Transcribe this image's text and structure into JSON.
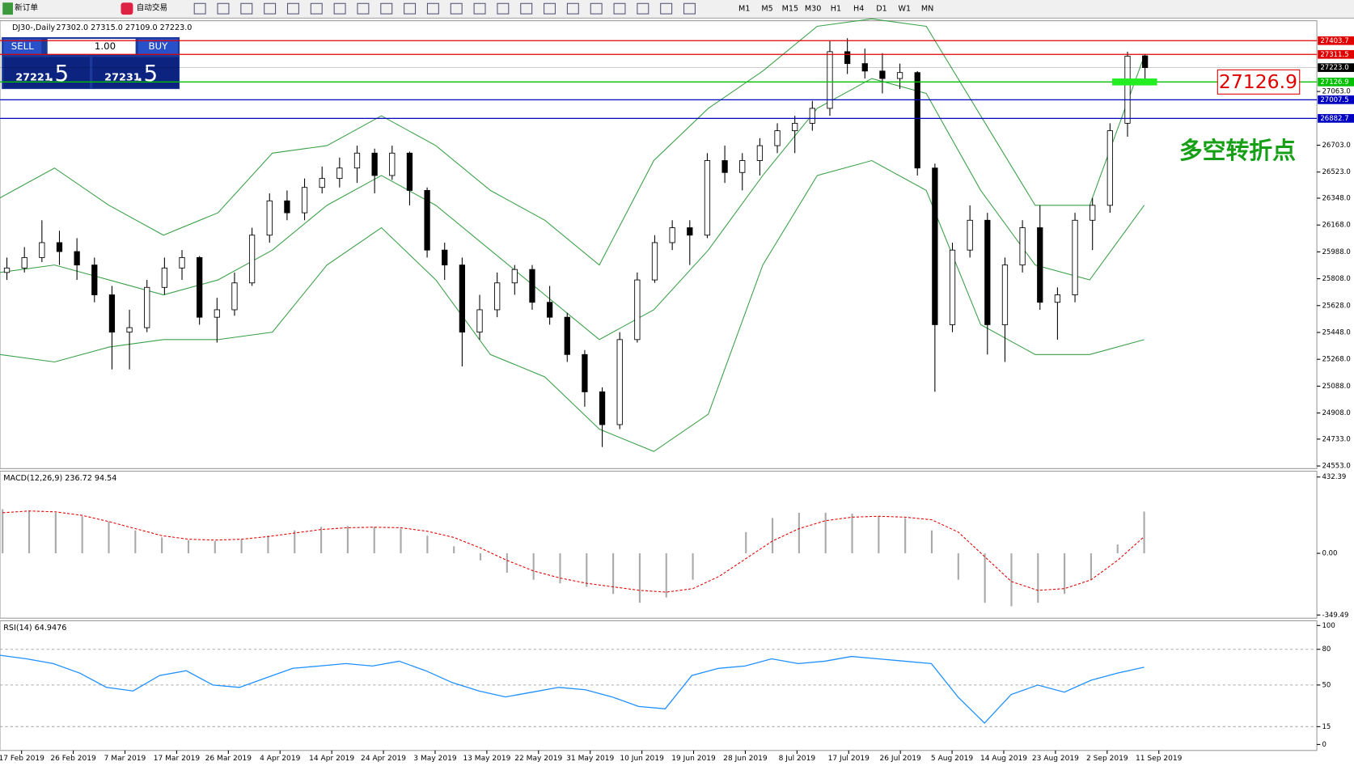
{
  "toolbar": {
    "new_order": "新订单",
    "auto_trading": "自动交易",
    "timeframes": [
      "M1",
      "M5",
      "M15",
      "M30",
      "H1",
      "H4",
      "D1",
      "W1",
      "MN"
    ]
  },
  "trade_panel": {
    "sell": "SELL",
    "buy": "BUY",
    "volume": "1.00",
    "sell_price": "27221",
    "sell_pip": ".5",
    "buy_price": "27231",
    "buy_pip": ".5"
  },
  "time_axis": {
    "labels": [
      "17 Feb 2019",
      "26 Feb 2019",
      "7 Mar 2019",
      "17 Mar 2019",
      "26 Mar 2019",
      "4 Apr 2019",
      "14 Apr 2019",
      "24 Apr 2019",
      "3 May 2019",
      "13 May 2019",
      "22 May 2019",
      "31 May 2019",
      "10 Jun 2019",
      "19 Jun 2019",
      "28 Jun 2019",
      "8 Jul 2019",
      "17 Jul 2019",
      "26 Jul 2019",
      "5 Aug 2019",
      "14 Aug 2019",
      "23 Aug 2019",
      "2 Sep 2019",
      "11 Sep 2019"
    ]
  },
  "chart_data": [
    {
      "type": "candlestick",
      "title": "DJ30-,Daily",
      "ohlc_label": "27302.0 27315.0 27109.0 27223.0",
      "candles": [
        [
          25850,
          25950,
          25800,
          25880
        ],
        [
          25880,
          26020,
          25850,
          25950
        ],
        [
          25950,
          26200,
          25920,
          26050
        ],
        [
          26050,
          26130,
          25900,
          25990
        ],
        [
          25990,
          26080,
          25800,
          25900
        ],
        [
          25900,
          25950,
          25650,
          25700
        ],
        [
          25700,
          25760,
          25200,
          25450
        ],
        [
          25450,
          25600,
          25200,
          25480
        ],
        [
          25480,
          25800,
          25450,
          25750
        ],
        [
          25750,
          25950,
          25700,
          25880
        ],
        [
          25880,
          26000,
          25800,
          25950
        ],
        [
          25950,
          25960,
          25500,
          25550
        ],
        [
          25550,
          25680,
          25380,
          25600
        ],
        [
          25600,
          25850,
          25560,
          25780
        ],
        [
          25780,
          26150,
          25760,
          26100
        ],
        [
          26100,
          26380,
          26050,
          26330
        ],
        [
          26330,
          26400,
          26200,
          26250
        ],
        [
          26250,
          26480,
          26200,
          26420
        ],
        [
          26420,
          26560,
          26380,
          26480
        ],
        [
          26480,
          26620,
          26420,
          26550
        ],
        [
          26550,
          26700,
          26450,
          26650
        ],
        [
          26650,
          26680,
          26380,
          26500
        ],
        [
          26500,
          26700,
          26470,
          26650
        ],
        [
          26650,
          26660,
          26300,
          26400
        ],
        [
          26400,
          26420,
          25950,
          26000
        ],
        [
          26000,
          26050,
          25800,
          25900
        ],
        [
          25900,
          25950,
          25220,
          25450
        ],
        [
          25450,
          25700,
          25400,
          25600
        ],
        [
          25600,
          25850,
          25550,
          25780
        ],
        [
          25780,
          25900,
          25700,
          25870
        ],
        [
          25870,
          25900,
          25600,
          25650
        ],
        [
          25650,
          25760,
          25500,
          25550
        ],
        [
          25550,
          25580,
          25250,
          25300
        ],
        [
          25300,
          25330,
          24950,
          25050
        ],
        [
          25050,
          25080,
          24680,
          24830
        ],
        [
          24830,
          25450,
          24800,
          25400
        ],
        [
          25400,
          25850,
          25380,
          25800
        ],
        [
          25800,
          26100,
          25780,
          26050
        ],
        [
          26050,
          26200,
          26000,
          26150
        ],
        [
          26150,
          26200,
          25900,
          26100
        ],
        [
          26100,
          26650,
          26080,
          26600
        ],
        [
          26600,
          26700,
          26450,
          26520
        ],
        [
          26520,
          26650,
          26400,
          26600
        ],
        [
          26600,
          26750,
          26500,
          26700
        ],
        [
          26700,
          26850,
          26650,
          26800
        ],
        [
          26800,
          26900,
          26650,
          26850
        ],
        [
          26850,
          27000,
          26800,
          26950
        ],
        [
          26950,
          27400,
          26900,
          27330
        ],
        [
          27330,
          27420,
          27180,
          27250
        ],
        [
          27250,
          27350,
          27150,
          27200
        ],
        [
          27200,
          27320,
          27050,
          27150
        ],
        [
          27150,
          27250,
          27080,
          27190
        ],
        [
          27190,
          27200,
          26500,
          26550
        ],
        [
          26550,
          26580,
          25050,
          25500
        ],
        [
          25500,
          26050,
          25450,
          26000
        ],
        [
          26000,
          26300,
          25950,
          26200
        ],
        [
          26200,
          26250,
          25300,
          25500
        ],
        [
          25500,
          25950,
          25250,
          25900
        ],
        [
          25900,
          26200,
          25850,
          26150
        ],
        [
          26150,
          26300,
          25600,
          25650
        ],
        [
          25650,
          25750,
          25400,
          25700
        ],
        [
          25700,
          26250,
          25650,
          26200
        ],
        [
          26200,
          26350,
          26000,
          26300
        ],
        [
          26300,
          26850,
          26250,
          26800
        ],
        [
          26850,
          27330,
          26760,
          27300
        ],
        [
          27302,
          27315,
          27109,
          27223
        ]
      ],
      "bands": {
        "upper": [
          26350,
          26550,
          26300,
          26100,
          26250,
          26650,
          26700,
          26900,
          26700,
          26400,
          26200,
          25900,
          26600,
          26950,
          27200,
          27500,
          27550,
          27500,
          26900,
          26300,
          26300,
          27300
        ],
        "middle": [
          25850,
          25900,
          25800,
          25700,
          25800,
          26000,
          26300,
          26500,
          26300,
          26000,
          25700,
          25400,
          25600,
          26000,
          26500,
          26950,
          27150,
          27050,
          26400,
          25900,
          25800,
          26300
        ],
        "lower": [
          25300,
          25250,
          25350,
          25400,
          25400,
          25450,
          25900,
          26150,
          25800,
          25300,
          25150,
          24800,
          24650,
          24900,
          25900,
          26500,
          26600,
          26400,
          25500,
          25300,
          25300,
          25400
        ]
      },
      "band_color": "#3aa048",
      "ylim": [
        24547,
        27514
      ],
      "yticks": [
        {
          "value": 27063,
          "label": "27063.0"
        },
        {
          "value": 26703,
          "label": "26703.0"
        },
        {
          "value": 26523,
          "label": "26523.0"
        },
        {
          "value": 26348,
          "label": "26348.0"
        },
        {
          "value": 26168,
          "label": "26168.0"
        },
        {
          "value": 25988,
          "label": "25988.0"
        },
        {
          "value": 25808,
          "label": "25808.0"
        },
        {
          "value": 25628,
          "label": "25628.0"
        },
        {
          "value": 25448,
          "label": "25448.0"
        },
        {
          "value": 25268,
          "label": "25268.0"
        },
        {
          "value": 25088,
          "label": "25088.0"
        },
        {
          "value": 24908,
          "label": "24908.0"
        },
        {
          "value": 24733,
          "label": "24733.0"
        },
        {
          "value": 24553,
          "label": "24553.0"
        }
      ],
      "levels": [
        27403.7,
        27311.5,
        {
          "value": 27223,
          "label": "27223.0"
        },
        27126.9,
        27007.5,
        26882.7
      ],
      "level_colors": [
        "#e00000",
        "#e00000",
        "#000000",
        "#00c000",
        "#0000c0",
        "#0000c0"
      ],
      "annotation": "多空转折点"
    },
    {
      "type": "macd",
      "title": "MACD(12,26,9) 236.72 94.54",
      "histogram": [
        250,
        240,
        230,
        210,
        180,
        130,
        90,
        75,
        70,
        80,
        100,
        130,
        150,
        155,
        150,
        140,
        100,
        40,
        -40,
        -110,
        -150,
        -170,
        -190,
        -230,
        -280,
        -250,
        -150,
        0,
        120,
        200,
        230,
        230,
        225,
        210,
        200,
        130,
        -150,
        -280,
        -300,
        -280,
        -230,
        -150,
        50,
        236.72
      ],
      "signal": [
        230,
        240,
        235,
        215,
        180,
        140,
        100,
        80,
        75,
        80,
        95,
        115,
        135,
        145,
        148,
        145,
        125,
        90,
        30,
        -40,
        -100,
        -140,
        -170,
        -190,
        -210,
        -220,
        -200,
        -130,
        -30,
        70,
        140,
        185,
        205,
        210,
        205,
        190,
        120,
        -20,
        -160,
        -210,
        -200,
        -150,
        -40,
        94.54
      ],
      "ylim": [
        -367.5,
        465.5
      ],
      "yticks": [
        432.39,
        {
          "value": 0,
          "label": "0.00"
        },
        -349.49
      ]
    },
    {
      "type": "line",
      "title": "RSI(14) 64.9476",
      "values": [
        75,
        72,
        68,
        60,
        48,
        45,
        58,
        62,
        50,
        48,
        56,
        64,
        66,
        68,
        66,
        70,
        62,
        52,
        45,
        40,
        44,
        48,
        46,
        40,
        32,
        30,
        58,
        64,
        66,
        72,
        68,
        70,
        74,
        72,
        70,
        68,
        40,
        18,
        42,
        50,
        44,
        54,
        60,
        64.9476
      ],
      "color": "#1e90ff",
      "ylim": [
        -5,
        104
      ],
      "yticks": [
        100,
        80,
        50,
        15,
        0
      ],
      "dashed_levels": [
        80,
        50,
        15
      ]
    }
  ]
}
